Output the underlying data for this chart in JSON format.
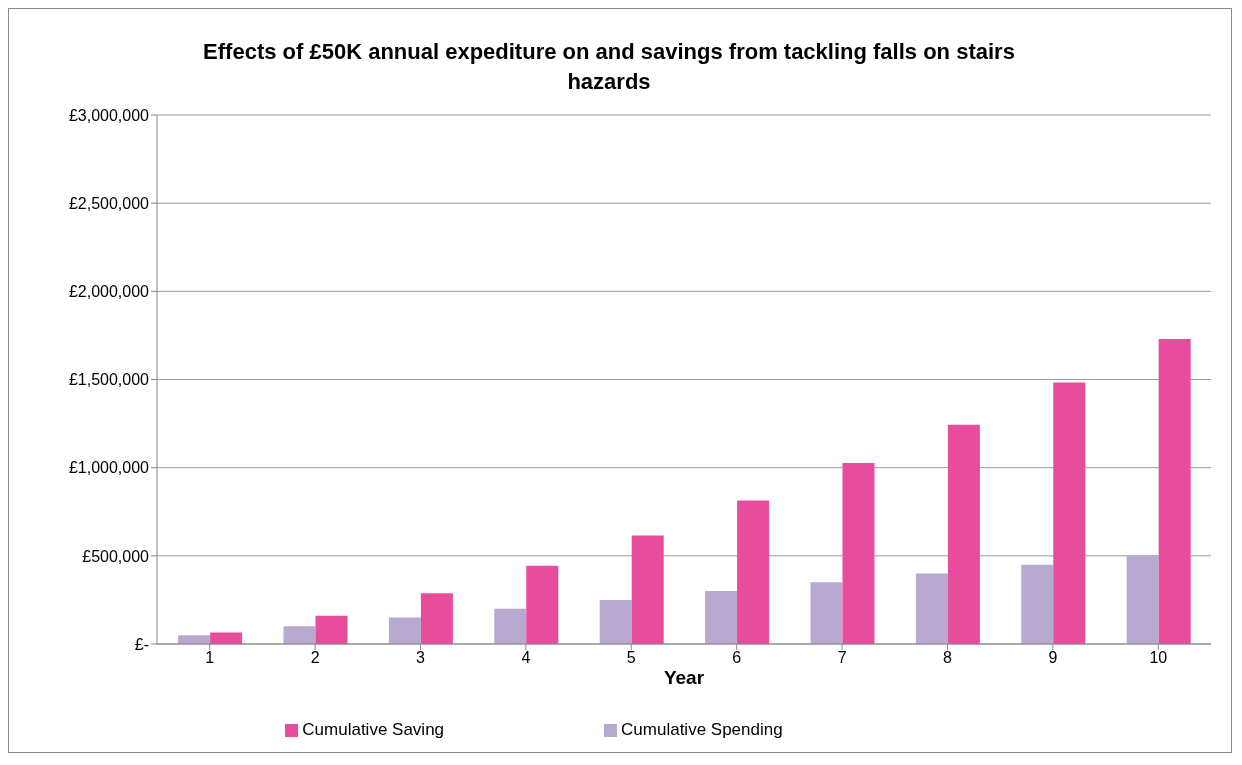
{
  "chart_data": {
    "type": "bar",
    "title": "Effects of £50K annual expediture on and savings from tackling falls on stairs hazards",
    "xlabel": "Year",
    "categories": [
      "1",
      "2",
      "3",
      "4",
      "5",
      "6",
      "7",
      "8",
      "9",
      "10"
    ],
    "series": [
      {
        "name": "Cumulative Spending",
        "color": "#b8a9d1",
        "values": [
          50000,
          100000,
          150000,
          200000,
          250000,
          300000,
          350000,
          400000,
          450000,
          500000
        ]
      },
      {
        "name": "Cumulative Saving",
        "color": "#e74d9b",
        "values": [
          65000,
          160000,
          288000,
          444000,
          615000,
          814000,
          1027000,
          1244000,
          1483000,
          1729000
        ]
      }
    ],
    "ylim": [
      0,
      3000000
    ],
    "yticks": [
      {
        "value": 0,
        "label": "£-"
      },
      {
        "value": 500000,
        "label": "£500,000"
      },
      {
        "value": 1000000,
        "label": "£1,000,000"
      },
      {
        "value": 1500000,
        "label": "£1,500,000"
      },
      {
        "value": 2000000,
        "label": "£2,000,000"
      },
      {
        "value": 2500000,
        "label": "£2,500,000"
      },
      {
        "value": 3000000,
        "label": "£3,000,000"
      }
    ],
    "grid": "y",
    "legend": "bottom"
  }
}
